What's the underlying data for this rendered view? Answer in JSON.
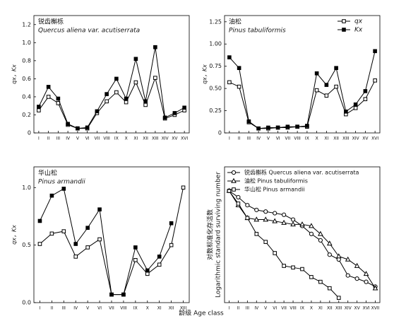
{
  "figure": {
    "x_label": "龄级 Age class"
  },
  "chart_data": [
    {
      "type": "line",
      "title": "锐齿槲栎",
      "subtitle": "Quercus aliena var. acutiserrata",
      "y_label": "qx，Kx",
      "categories": [
        "I",
        "II",
        "III",
        "IV",
        "V",
        "VI",
        "VII",
        "VIII",
        "IX",
        "X",
        "XI",
        "XII",
        "XIII",
        "XIV",
        "XV",
        "XVI"
      ],
      "ylim": [
        0,
        1.3
      ],
      "yticks": [
        0,
        0.2,
        0.4,
        0.6,
        0.8,
        {
          "value": 1,
          "label": "1.0"
        },
        1.2
      ],
      "series": [
        {
          "name": "qx",
          "color": "#000000",
          "marker": "square-open",
          "values": [
            0.25,
            0.4,
            0.33,
            0.09,
            0.05,
            0.05,
            0.22,
            0.35,
            0.45,
            0.34,
            0.56,
            0.31,
            0.61,
            0.16,
            0.2,
            0.25
          ]
        },
        {
          "name": "Kx",
          "color": "#000000",
          "marker": "square-filled",
          "values": [
            0.29,
            0.51,
            0.38,
            0.1,
            0.05,
            0.06,
            0.24,
            0.43,
            0.6,
            0.38,
            0.82,
            0.35,
            0.95,
            0.17,
            0.22,
            0.28
          ]
        }
      ]
    },
    {
      "type": "line",
      "title": "油松",
      "subtitle": "Pinus tabuliformis",
      "y_label": "qx，Kx",
      "legend": "upper right",
      "categories": [
        "I",
        "II",
        "III",
        "IV",
        "V",
        "VI",
        "VII",
        "VIII",
        "IX",
        "X",
        "XI",
        "XII",
        "XIII",
        "XIV",
        "XV",
        "XVI"
      ],
      "ylim": [
        0,
        1.32
      ],
      "yticks": [
        0,
        0.25,
        {
          "value": 0.5,
          "label": "0.50"
        },
        0.75,
        {
          "value": 1,
          "label": "1.00"
        },
        1.25
      ],
      "series": [
        {
          "name": "qx",
          "color": "#000000",
          "marker": "square-open",
          "values": [
            0.57,
            0.52,
            0.12,
            0.05,
            0.05,
            0.06,
            0.06,
            0.07,
            0.07,
            0.48,
            0.42,
            0.52,
            0.21,
            0.28,
            0.38,
            0.59
          ]
        },
        {
          "name": "Kx",
          "color": "#000000",
          "marker": "square-filled",
          "values": [
            0.85,
            0.73,
            0.13,
            0.05,
            0.06,
            0.06,
            0.07,
            0.07,
            0.08,
            0.67,
            0.54,
            0.73,
            0.24,
            0.32,
            0.47,
            0.92
          ]
        }
      ]
    },
    {
      "type": "line",
      "title": "华山松",
      "subtitle": "Pinus armandii",
      "y_label": "qx，Kx",
      "categories": [
        "I",
        "II",
        "III",
        "IV",
        "V",
        "VI",
        "VII",
        "VIII",
        "IX",
        "X",
        "XI",
        "XII",
        "XIII"
      ],
      "ylim": [
        0,
        1.18
      ],
      "yticks": [
        {
          "value": 0,
          "label": "0.0"
        },
        0.5,
        {
          "value": 1,
          "label": "1.0"
        }
      ],
      "series": [
        {
          "name": "qx",
          "color": "#000000",
          "marker": "square-open",
          "values": [
            0.51,
            0.6,
            0.62,
            0.4,
            0.48,
            0.55,
            0.07,
            0.07,
            0.37,
            0.25,
            0.33,
            0.5,
            1.0
          ]
        },
        {
          "name": "Kx",
          "color": "#000000",
          "marker": "square-filled",
          "values": [
            0.71,
            0.93,
            0.99,
            0.51,
            0.65,
            0.81,
            0.07,
            0.07,
            0.48,
            0.28,
            0.4,
            0.69,
            null
          ]
        }
      ]
    },
    {
      "type": "line",
      "y_label": [
        "对数标准化存活数",
        "Logarithmic standard surviving number"
      ],
      "legend": "upper left",
      "categories": [
        "I",
        "II",
        "III",
        "IV",
        "V",
        "VI",
        "VII",
        "VIII",
        "IX",
        "X",
        "XI",
        "XII",
        "XIII",
        "XIV",
        "XV",
        "XVI",
        "XVII"
      ],
      "ylim": [
        0,
        8.5
      ],
      "series": [
        {
          "name": "锐齿槲栎 Quercus aliena var. acutiserrata",
          "color": "#000000",
          "marker": "circle-open",
          "values": [
            7.0,
            6.6,
            6.1,
            5.8,
            5.7,
            5.6,
            5.5,
            5.2,
            4.8,
            4.3,
            3.9,
            3.0,
            2.7,
            1.7,
            1.5,
            1.3,
            1.0
          ]
        },
        {
          "name": "油松 Pinus tabuliformis",
          "color": "#000000",
          "marker": "triangle-open",
          "values": [
            7.0,
            6.1,
            5.3,
            5.2,
            5.2,
            5.1,
            5.0,
            4.9,
            4.9,
            4.8,
            4.3,
            3.7,
            2.9,
            2.7,
            2.3,
            1.8,
            0.9
          ]
        },
        {
          "name": "华山松 Pinus armandii",
          "color": "#000000",
          "marker": "square-open",
          "values": [
            7.0,
            6.2,
            5.3,
            4.3,
            3.8,
            3.1,
            2.3,
            2.2,
            2.1,
            1.6,
            1.3,
            0.9,
            0.3,
            null,
            null,
            null,
            null
          ]
        }
      ]
    }
  ]
}
